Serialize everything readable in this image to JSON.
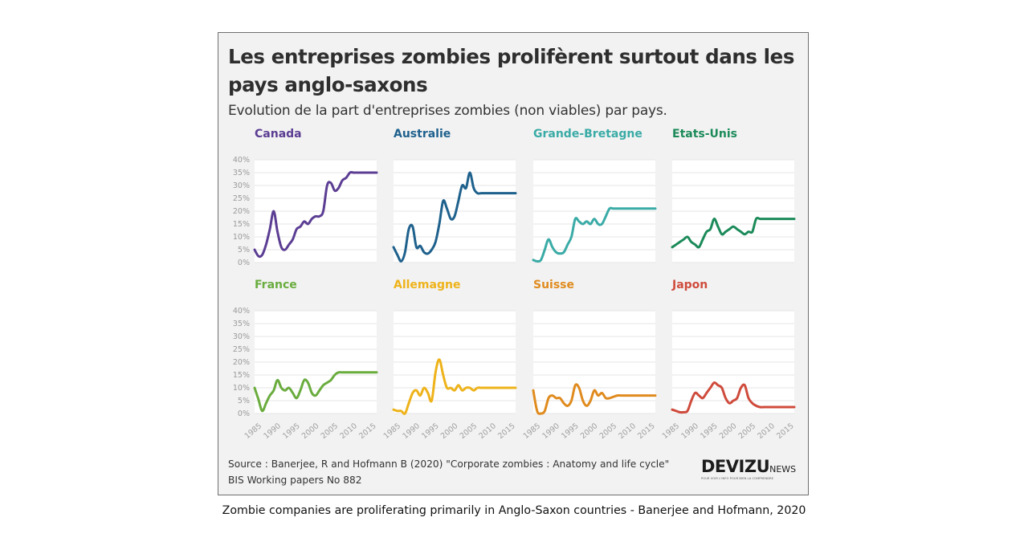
{
  "title": "Les entreprises zombies prolifèrent surtout dans les pays anglo-saxons",
  "subtitle": "Evolution de la part d'entreprises zombies (non viables) par pays.",
  "source_line1": "Source : Banerjee, R and Hofmann B (2020) \"Corporate zombies : Anatomy and life cycle\"",
  "source_line2": "BIS Working papers No 882",
  "logo": {
    "main": "DEVIZU",
    "sub": "NEWS",
    "tagline": "POUR VOIR L'INFO POUR BIEN LA COMPRENDRE"
  },
  "caption": "Zombie companies are proliferating primarily in Anglo-Saxon countries - Banerjee and Hofmann, 2020",
  "colors": {
    "Canada": "#5b3d93",
    "Australie": "#1f618d",
    "Grande-Bretagne": "#3aaba6",
    "Etats-Unis": "#1b8a59",
    "France": "#6aac3e",
    "Allemagne": "#eeb31a",
    "Suisse": "#e08b1e",
    "Japon": "#cf4b3c"
  },
  "chart_data": {
    "type": "line",
    "title": "Les entreprises zombies prolifèrent surtout dans les pays anglo-saxons",
    "subtitle": "Evolution de la part d'entreprises zombies (non viables) par pays.",
    "layout": "small multiples, 2 rows x 4 columns",
    "xlabel": "",
    "ylabel": "",
    "ylim": [
      0,
      40
    ],
    "yticks": [
      "0%",
      "5%",
      "10%",
      "15%",
      "20%",
      "25%",
      "30%",
      "35%",
      "40%"
    ],
    "xticks": [
      "1985",
      "1990",
      "1995",
      "2000",
      "2005",
      "2010",
      "2015"
    ],
    "grid": true,
    "x": [
      1985,
      1986,
      1987,
      1988,
      1989,
      1990,
      1991,
      1992,
      1993,
      1994,
      1995,
      1996,
      1997,
      1998,
      1999,
      2000,
      2001,
      2002,
      2003,
      2004,
      2005,
      2006,
      2007,
      2008,
      2009,
      2010,
      2011,
      2012,
      2013,
      2014,
      2015,
      2016,
      2017
    ],
    "series": [
      {
        "name": "Canada",
        "values": [
          5,
          2.5,
          3,
          7,
          13,
          20,
          12,
          6,
          5,
          7,
          9,
          13,
          14,
          16,
          15,
          17,
          18,
          18,
          20,
          30,
          31,
          28,
          29,
          32,
          33,
          35,
          35,
          35,
          35,
          35,
          35,
          35,
          35
        ]
      },
      {
        "name": "Australie",
        "values": [
          6,
          3,
          0.5,
          4,
          13,
          14,
          6,
          6.5,
          4,
          3.5,
          5,
          8,
          15,
          24,
          21,
          17,
          18,
          24,
          30,
          29,
          35,
          29,
          27,
          27,
          27,
          27,
          27,
          27,
          27,
          27,
          27,
          27,
          27
        ]
      },
      {
        "name": "Grande-Bretagne",
        "values": [
          1,
          0.5,
          1,
          5,
          9,
          6,
          4,
          3.5,
          4,
          7,
          10,
          17,
          16,
          15,
          16,
          15,
          17,
          15,
          15,
          18,
          21,
          21,
          21,
          21,
          21,
          21,
          21,
          21,
          21,
          21,
          21,
          21,
          21
        ]
      },
      {
        "name": "Etats-Unis",
        "values": [
          6,
          7,
          8,
          9,
          10,
          8,
          7,
          6,
          9,
          12,
          13,
          17,
          14,
          11,
          12,
          13,
          14,
          13,
          12,
          11,
          12,
          12,
          17,
          17,
          17,
          17,
          17,
          17,
          17,
          17,
          17,
          17,
          17
        ]
      },
      {
        "name": "France",
        "values": [
          10,
          5.5,
          1,
          4,
          7,
          9,
          13,
          10,
          9,
          10,
          8,
          6,
          9,
          13,
          12,
          8,
          7,
          9,
          11,
          12,
          13,
          15,
          16,
          16,
          16,
          16,
          16,
          16,
          16,
          16,
          16,
          16,
          16
        ]
      },
      {
        "name": "Allemagne",
        "values": [
          1.5,
          1,
          1,
          0,
          4,
          8,
          9,
          7,
          10,
          8,
          5,
          16,
          21,
          15,
          10,
          10,
          9,
          11,
          9,
          10,
          10,
          9,
          10,
          10,
          10,
          10,
          10,
          10,
          10,
          10,
          10,
          10,
          10
        ]
      },
      {
        "name": "Suisse",
        "values": [
          9,
          1,
          0,
          1,
          6,
          7,
          6,
          6,
          4,
          3,
          5,
          11,
          10,
          5,
          3,
          5,
          9,
          7,
          8,
          6,
          6,
          6.5,
          7,
          7,
          7,
          7,
          7,
          7,
          7,
          7,
          7,
          7,
          7
        ]
      },
      {
        "name": "Japon",
        "values": [
          1.5,
          1,
          0.5,
          0.5,
          1,
          5,
          8,
          7,
          6,
          8,
          10,
          12,
          11,
          10,
          6,
          4,
          5,
          6,
          10,
          11,
          6,
          4,
          3,
          2.5,
          2.5,
          2.5,
          2.5,
          2.5,
          2.5,
          2.5,
          2.5,
          2.5,
          2.5
        ]
      }
    ]
  }
}
